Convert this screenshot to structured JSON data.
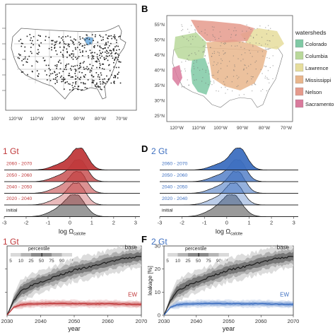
{
  "panels": {
    "A": {
      "label": ""
    },
    "B": {
      "label": "B"
    },
    "C": {
      "label": "",
      "title": "1 Gt"
    },
    "D": {
      "label": "D",
      "title": "2 Gt"
    },
    "E": {
      "label": "",
      "title": "1 Gt"
    },
    "F": {
      "label": "F",
      "title": "2 Gt"
    }
  },
  "maps": {
    "lon_ticks": [
      "120°W",
      "110°W",
      "100°W",
      "90°W",
      "80°W",
      "70°W"
    ],
    "lat_ticks_b": [
      "55°N",
      "50°N",
      "45°N",
      "40°N",
      "35°N",
      "30°N",
      "25°N"
    ],
    "watersheds": {
      "title": "watersheds",
      "items": [
        {
          "name": "Colorado",
          "color": "#7fc9a4"
        },
        {
          "name": "Columbia",
          "color": "#b9d89a"
        },
        {
          "name": "Lawrence",
          "color": "#e6dd9c"
        },
        {
          "name": "Mississippi",
          "color": "#e9b68c"
        },
        {
          "name": "Nelson",
          "color": "#e59a8c"
        },
        {
          "name": "Sacramento",
          "color": "#d97a9c"
        }
      ]
    }
  },
  "chart_data": [
    {
      "type": "area",
      "panel": "C",
      "title": "1 Gt",
      "xlabel": "log Ωcalcite",
      "xticks": [
        "-3",
        "-2",
        "-1",
        "0",
        "1",
        "2",
        "3"
      ],
      "xlim": [
        -3,
        3.2
      ],
      "color": "#c0393b",
      "series": [
        {
          "name": "2060 - 2070",
          "mu": 0.45,
          "sigma": 0.36
        },
        {
          "name": "2050 - 2060",
          "mu": 0.42,
          "sigma": 0.36
        },
        {
          "name": "2040 - 2050",
          "mu": 0.38,
          "sigma": 0.37
        },
        {
          "name": "2020 - 2040",
          "mu": 0.32,
          "sigma": 0.38
        },
        {
          "name": "initial",
          "mu": 0.25,
          "sigma": 0.42
        }
      ]
    },
    {
      "type": "area",
      "panel": "D",
      "title": "2 Gt",
      "xlabel": "log Ωcalcite",
      "xticks": [
        "-3",
        "-2",
        "-1",
        "0",
        "1",
        "2",
        "3"
      ],
      "xlim": [
        -3,
        3.2
      ],
      "color": "#3d6fc0",
      "series": [
        {
          "name": "2060 - 2070",
          "mu": 0.55,
          "sigma": 0.35
        },
        {
          "name": "2050 - 2060",
          "mu": 0.5,
          "sigma": 0.35
        },
        {
          "name": "2040 - 2050",
          "mu": 0.45,
          "sigma": 0.36
        },
        {
          "name": "2020 - 2040",
          "mu": 0.35,
          "sigma": 0.38
        },
        {
          "name": "initial",
          "mu": 0.25,
          "sigma": 0.42
        }
      ]
    },
    {
      "type": "line",
      "panel": "E",
      "title": "1 Gt",
      "xlabel": "year",
      "ylabel": "",
      "xticks": [
        2030,
        2040,
        2050,
        2060,
        2070
      ],
      "xlim": [
        2030,
        2070
      ],
      "ylim": [
        0,
        30
      ],
      "percentile_legend": {
        "title": "percentile",
        "ticks": [
          "5",
          "10",
          "25",
          "50",
          "75",
          "90",
          "95"
        ]
      },
      "series": [
        {
          "name": "base",
          "color": "#222222",
          "x": [
            2030,
            2032,
            2034,
            2036,
            2038,
            2040,
            2045,
            2050,
            2055,
            2060,
            2065,
            2070
          ],
          "y": [
            0,
            6.5,
            10.5,
            12,
            13.5,
            14.5,
            17,
            19.5,
            21,
            23,
            24.5,
            25.5
          ]
        },
        {
          "name": "EW",
          "color": "#c0393b",
          "x": [
            2030,
            2032,
            2034,
            2036,
            2040,
            2045,
            2050,
            2055,
            2060,
            2065,
            2070
          ],
          "y": [
            0,
            3.5,
            4.5,
            4.8,
            5,
            5.1,
            5,
            4.9,
            5,
            4.8,
            4.7
          ]
        }
      ]
    },
    {
      "type": "line",
      "panel": "F",
      "title": "2 Gt",
      "xlabel": "year",
      "ylabel": "leakage [%]",
      "xticks": [
        2030,
        2040,
        2050,
        2060,
        2070
      ],
      "yticks": [
        0,
        10,
        20,
        30
      ],
      "xlim": [
        2030,
        2070
      ],
      "ylim": [
        0,
        30
      ],
      "percentile_legend": {
        "title": "percentile",
        "ticks": [
          "5",
          "10",
          "25",
          "50",
          "75",
          "90",
          "95"
        ]
      },
      "series": [
        {
          "name": "base",
          "color": "#222222",
          "x": [
            2030,
            2032,
            2034,
            2036,
            2038,
            2040,
            2045,
            2050,
            2055,
            2060,
            2065,
            2070
          ],
          "y": [
            0,
            6.5,
            10.5,
            12,
            13.5,
            14.5,
            17,
            19.5,
            21,
            23,
            24.5,
            25.5
          ]
        },
        {
          "name": "EW",
          "color": "#3d6fc0",
          "x": [
            2030,
            2032,
            2034,
            2036,
            2040,
            2045,
            2050,
            2055,
            2060,
            2065,
            2070
          ],
          "y": [
            0,
            3.5,
            4.5,
            4.8,
            5,
            5.1,
            5,
            4.9,
            5,
            4.8,
            4.7
          ]
        }
      ]
    }
  ]
}
